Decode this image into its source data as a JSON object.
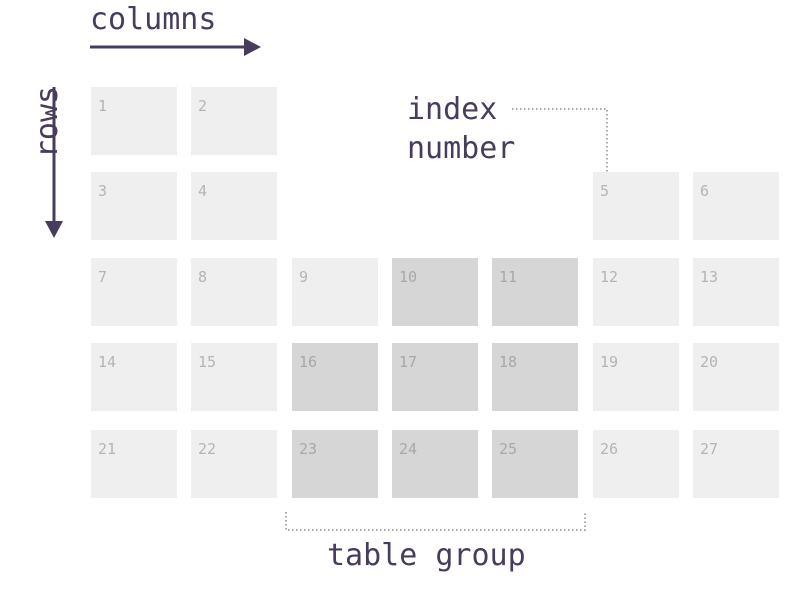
{
  "labels": {
    "columns": "columns",
    "rows": "rows",
    "index_line1": "index",
    "index_line2": "number",
    "table_group": "table group"
  },
  "colors": {
    "text": "#483c5c",
    "cell": "#efefef",
    "group_cell": "#d6d6d6",
    "cell_number": "#b4b4b4",
    "guide_dots": "#a9a9a9"
  },
  "grid": {
    "rows": [
      [
        {
          "n": "1",
          "col": 0
        },
        {
          "n": "2",
          "col": 1
        },
        {
          "n": "5",
          "col": 5,
          "skip": true
        }
      ],
      [
        {
          "n": "3",
          "col": 0
        },
        {
          "n": "4",
          "col": 1
        },
        {
          "n": "5",
          "col": 5
        },
        {
          "n": "6",
          "col": 6
        }
      ],
      [
        {
          "n": "7",
          "col": 0
        },
        {
          "n": "8",
          "col": 1
        },
        {
          "n": "9",
          "col": 2
        },
        {
          "n": "10",
          "col": 3,
          "group": true
        },
        {
          "n": "11",
          "col": 4,
          "group": true
        },
        {
          "n": "12",
          "col": 5
        },
        {
          "n": "13",
          "col": 6
        }
      ],
      [
        {
          "n": "14",
          "col": 0
        },
        {
          "n": "15",
          "col": 1
        },
        {
          "n": "16",
          "col": 2,
          "group": true
        },
        {
          "n": "17",
          "col": 3,
          "group": true
        },
        {
          "n": "18",
          "col": 4,
          "group": true
        },
        {
          "n": "19",
          "col": 5
        },
        {
          "n": "20",
          "col": 6
        }
      ],
      [
        {
          "n": "21",
          "col": 0
        },
        {
          "n": "22",
          "col": 1
        },
        {
          "n": "23",
          "col": 2,
          "group": true
        },
        {
          "n": "24",
          "col": 3,
          "group": true
        },
        {
          "n": "25",
          "col": 4,
          "group": true
        },
        {
          "n": "26",
          "col": 5
        },
        {
          "n": "27",
          "col": 6
        }
      ]
    ]
  }
}
